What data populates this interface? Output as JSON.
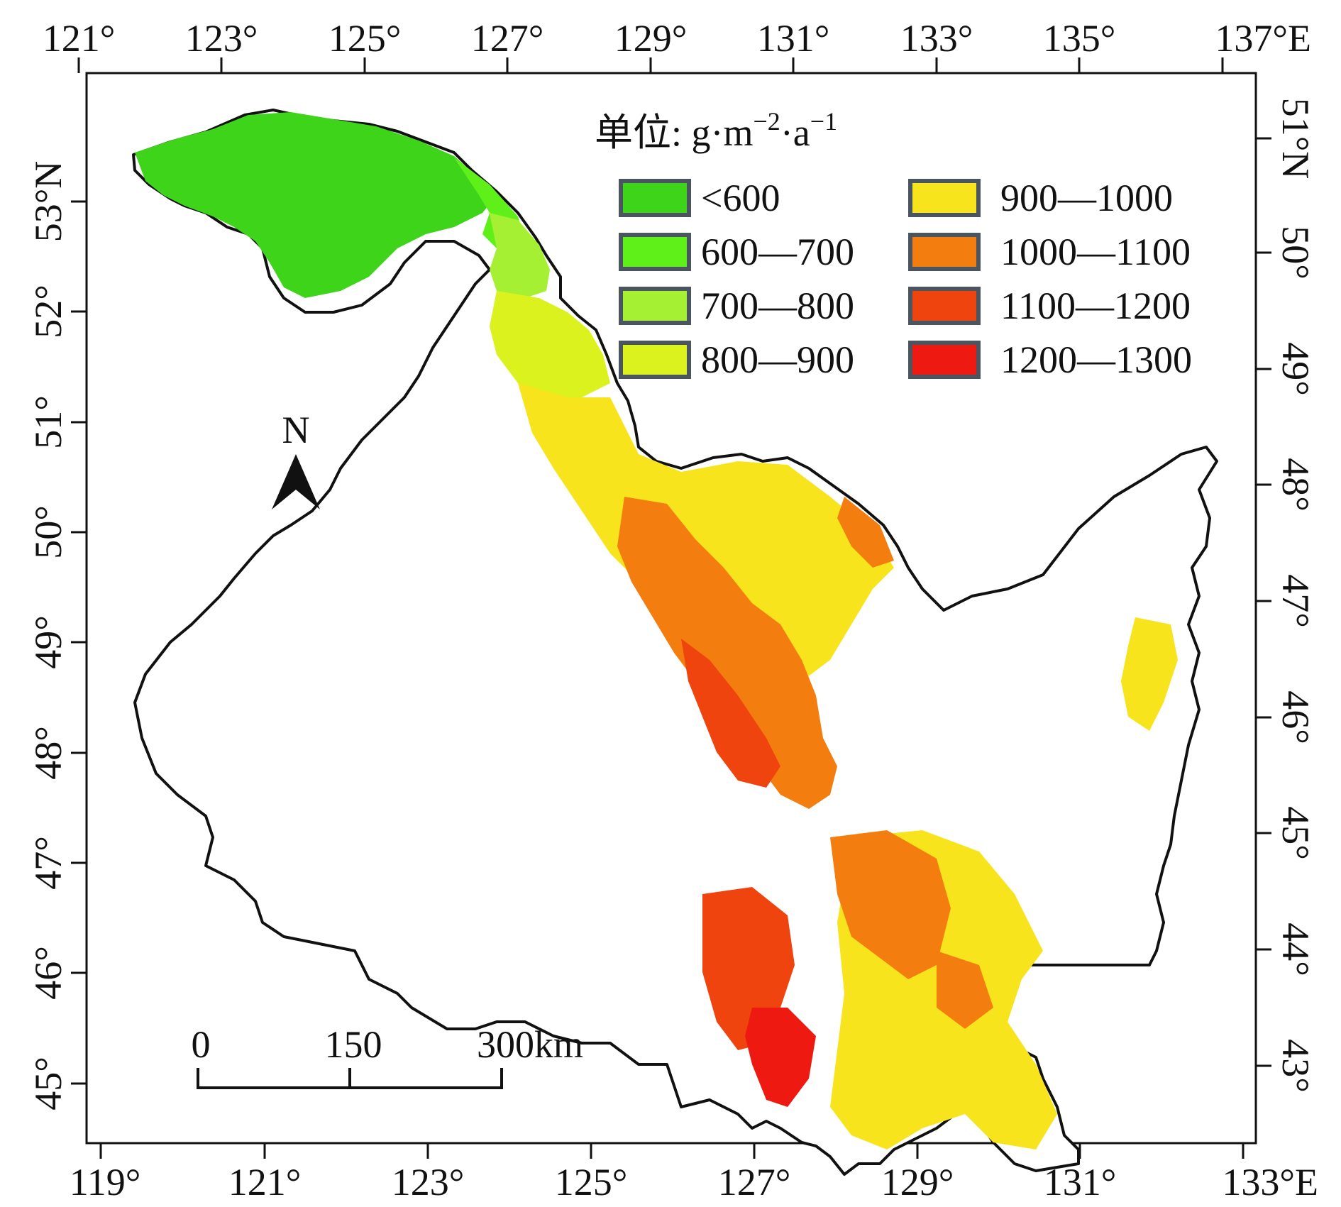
{
  "outer_frame": {
    "top_longitudes": [
      "121°",
      "123°",
      "125°",
      "127°",
      "129°",
      "131°",
      "133°",
      "135°",
      "137°E"
    ],
    "bottom_longitudes": [
      "119°",
      "121°",
      "123°",
      "125°",
      "127°",
      "129°",
      "131°",
      "133°E"
    ],
    "left_latitudes": [
      "53°N",
      "52°",
      "51°",
      "50°",
      "49°",
      "48°",
      "47°",
      "46°",
      "45°"
    ],
    "right_latitudes": [
      "51°N",
      "50°",
      "49°",
      "48°",
      "47°",
      "46°",
      "45°",
      "44°",
      "43°"
    ]
  },
  "legend": {
    "title": "单位: g·m",
    "unit_sup1": "−2",
    "unit_mid": "·a",
    "unit_sup2": "−1",
    "items": [
      {
        "label": "<600",
        "color": "#3ed41a"
      },
      {
        "label": "600—700",
        "color": "#5ff01a"
      },
      {
        "label": "700—800",
        "color": "#a6f034"
      },
      {
        "label": "800—900",
        "color": "#dcf21e"
      },
      {
        "label": "900—1000",
        "color": "#f7e41c"
      },
      {
        "label": "1000—1100",
        "color": "#f47d10"
      },
      {
        "label": "1100—1200",
        "color": "#f0440f"
      },
      {
        "label": "1200—1300",
        "color": "#ee1a12"
      }
    ]
  },
  "north_arrow": {
    "label": "N"
  },
  "scale_bar": {
    "labels": [
      "0",
      "150",
      "300km"
    ]
  },
  "colors": {
    "background": "#ffffff",
    "boundary": "#111111",
    "legend_border": "#4b5560"
  }
}
